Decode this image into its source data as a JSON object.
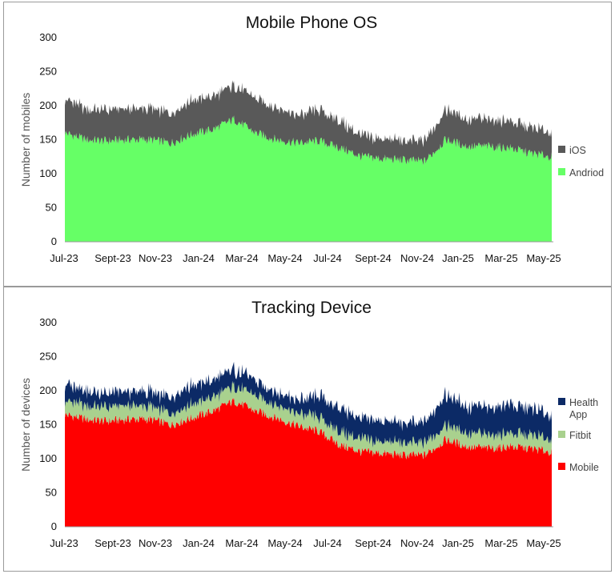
{
  "charts": [
    {
      "title": "Mobile Phone OS",
      "ylabel": "Number of mobiles",
      "legend": [
        {
          "label": "iOS",
          "color": "#595959"
        },
        {
          "label": "Andriod",
          "color": "#66ff66"
        }
      ]
    },
    {
      "title": "Tracking Device",
      "ylabel": "Number of devices",
      "legend": [
        {
          "label": "Health App",
          "color": "#0c2a66"
        },
        {
          "label": "Fitbit",
          "color": "#a9d18e"
        },
        {
          "label": "Mobile",
          "color": "#ff0000"
        }
      ]
    }
  ],
  "x_ticks": [
    "Jul-23",
    "Sept-23",
    "Nov-23",
    "Jan-24",
    "Mar-24",
    "May-24",
    "Jul-24",
    "Sept-24",
    "Nov-24",
    "Jan-25",
    "Mar-25",
    "May-25"
  ],
  "y_ticks": [
    "0",
    "50",
    "100",
    "150",
    "200",
    "250",
    "300"
  ],
  "chart_data": [
    {
      "type": "area",
      "stacked": true,
      "title": "Mobile Phone OS",
      "ylabel": "Number of mobiles",
      "ylim": [
        0,
        300
      ],
      "x": [
        "Jul-23",
        "Aug-23",
        "Sept-23",
        "Oct-23",
        "Nov-23",
        "Dec-23",
        "Jan-24",
        "Feb-24",
        "Mar-24",
        "Apr-24",
        "May-24",
        "Jun-24",
        "Jul-24",
        "Aug-24",
        "Sept-24",
        "Oct-24",
        "Nov-24",
        "Dec-24",
        "Jan-25",
        "Feb-25",
        "Mar-25",
        "Apr-25",
        "May-25",
        "Jun-25"
      ],
      "series": [
        {
          "name": "Andriod",
          "color": "#66ff66",
          "values": [
            160,
            150,
            148,
            150,
            150,
            145,
            158,
            165,
            180,
            160,
            150,
            145,
            148,
            138,
            125,
            122,
            120,
            118,
            150,
            140,
            140,
            138,
            130,
            125
          ]
        },
        {
          "name": "iOS",
          "color": "#595959",
          "values": [
            50,
            45,
            45,
            45,
            45,
            45,
            50,
            48,
            50,
            50,
            48,
            40,
            45,
            40,
            30,
            30,
            28,
            30,
            45,
            40,
            40,
            40,
            38,
            35
          ]
        }
      ]
    },
    {
      "type": "area",
      "stacked": true,
      "title": "Tracking Device",
      "ylabel": "Number of devices",
      "ylim": [
        0,
        300
      ],
      "x": [
        "Jul-23",
        "Aug-23",
        "Sept-23",
        "Oct-23",
        "Nov-23",
        "Dec-23",
        "Jan-24",
        "Feb-24",
        "Mar-24",
        "Apr-24",
        "May-24",
        "Jun-24",
        "Jul-24",
        "Aug-24",
        "Sept-24",
        "Oct-24",
        "Nov-24",
        "Dec-24",
        "Jan-25",
        "Feb-25",
        "Mar-25",
        "Apr-25",
        "May-25",
        "Jun-25"
      ],
      "series": [
        {
          "name": "Mobile",
          "color": "#ff0000",
          "values": [
            165,
            158,
            155,
            158,
            158,
            150,
            160,
            170,
            185,
            170,
            160,
            148,
            140,
            120,
            110,
            108,
            105,
            105,
            128,
            118,
            115,
            118,
            115,
            110
          ]
        },
        {
          "name": "Fitbit",
          "color": "#a9d18e",
          "values": [
            20,
            20,
            20,
            20,
            18,
            18,
            20,
            20,
            22,
            22,
            20,
            18,
            20,
            20,
            18,
            18,
            18,
            18,
            22,
            20,
            20,
            20,
            20,
            18
          ]
        },
        {
          "name": "Health App",
          "color": "#0c2a66",
          "values": [
            25,
            22,
            20,
            20,
            22,
            22,
            28,
            25,
            25,
            22,
            20,
            20,
            30,
            35,
            30,
            30,
            28,
            30,
            45,
            40,
            40,
            42,
            40,
            35
          ]
        }
      ]
    }
  ]
}
